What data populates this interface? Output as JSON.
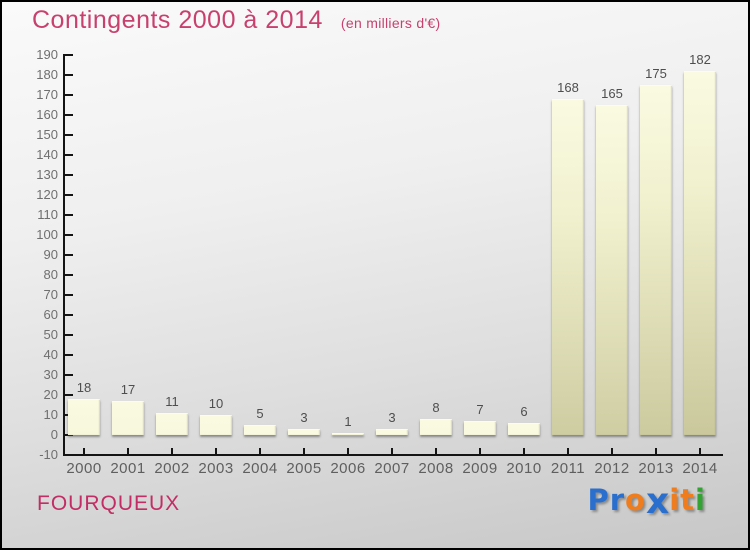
{
  "header": {
    "title": "Contingents 2000 à 2014",
    "subtitle": "(en milliers d'€)"
  },
  "chart_data": {
    "type": "bar",
    "title": "Contingents 2000 à 2014",
    "subtitle": "(en milliers d'€)",
    "categories": [
      "2000",
      "2001",
      "2002",
      "2003",
      "2004",
      "2005",
      "2006",
      "2007",
      "2008",
      "2009",
      "2010",
      "2011",
      "2012",
      "2013",
      "2014"
    ],
    "values": [
      18,
      17,
      11,
      10,
      5,
      3,
      1,
      3,
      8,
      7,
      6,
      168,
      165,
      175,
      182
    ],
    "xlabel": "",
    "ylabel": "",
    "ylim": [
      -10,
      190
    ],
    "ytick_step": 10,
    "grid": false,
    "legend": "none",
    "value_labels_shown": true,
    "bar_color_top": "#fafae2",
    "bar_color_bottom": "#c7c598",
    "axis_color": "#141414",
    "tick_label_color": "#6f6f6f",
    "value_label_color": "#4e4e4e"
  },
  "footer": {
    "place_name": "FOURQUEUX",
    "logo": {
      "name": "Proxiti",
      "letters": [
        {
          "ch": "P",
          "color": "#2a6fce",
          "big": false
        },
        {
          "ch": "r",
          "color": "#2a6fce",
          "big": false
        },
        {
          "ch": "o",
          "color": "#f07d1d",
          "big": false
        },
        {
          "ch": "x",
          "color": "#2a6fce",
          "big": true
        },
        {
          "ch": "i",
          "color": "#f07d1d",
          "big": false
        },
        {
          "ch": "t",
          "color": "#f07d1d",
          "big": false
        },
        {
          "ch": "i",
          "color": "#33a433",
          "big": false
        }
      ]
    }
  },
  "colors": {
    "title_pink": "#c8406e",
    "place_pink": "#c22d63",
    "background_top": "#fafafa",
    "background_bottom": "#c7c7c7"
  }
}
